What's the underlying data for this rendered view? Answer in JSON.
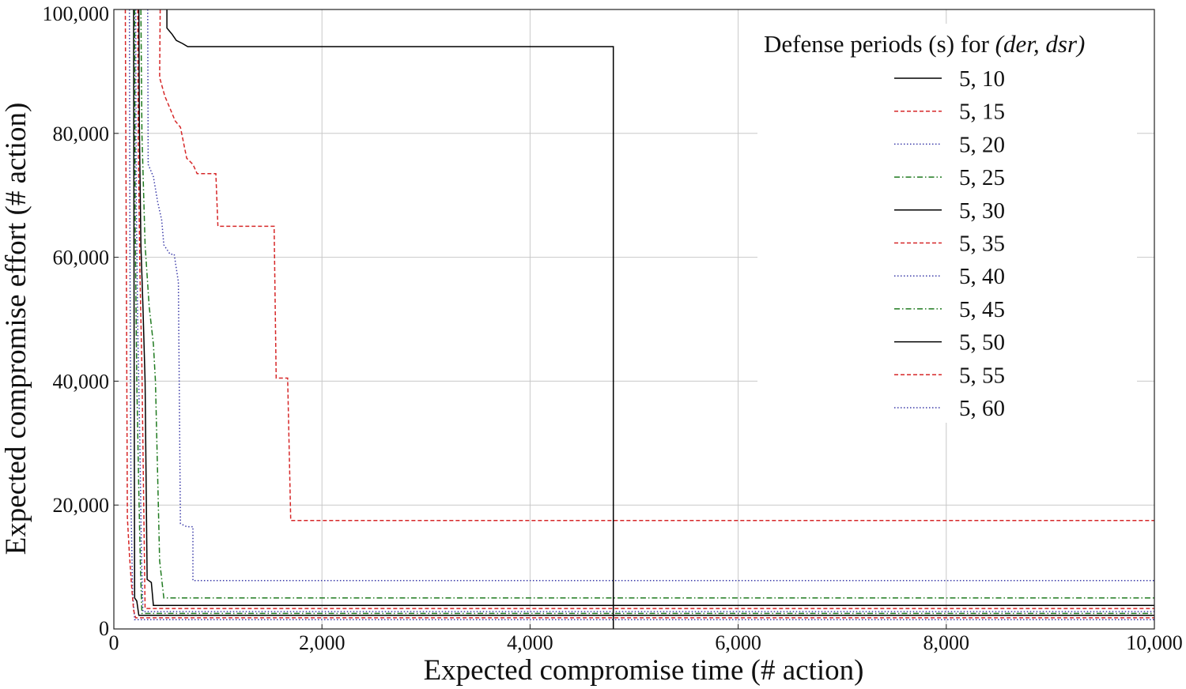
{
  "chart_data": {
    "type": "line",
    "title": "",
    "xlabel": "Expected compromise time (# action)",
    "ylabel": "Expected compromise effort (# action)",
    "xlim": [
      0,
      10000
    ],
    "ylim": [
      0,
      100000
    ],
    "xticks": [
      0,
      2000,
      4000,
      6000,
      8000,
      10000
    ],
    "xtick_labels": [
      "0",
      "2,000",
      "4,000",
      "6,000",
      "8,000",
      "10,000"
    ],
    "yticks": [
      0,
      20000,
      40000,
      60000,
      80000,
      100000
    ],
    "ytick_labels": [
      "0",
      "20,000",
      "40,000",
      "60,000",
      "80,000",
      "100,000"
    ],
    "grid": true,
    "legend": {
      "position": "top-right",
      "title": "Defense periods (s) for ",
      "title_math": "(der, dsr)"
    },
    "series": [
      {
        "name": "5, 10",
        "color": "#000000",
        "style": "solid",
        "x": [
          510,
          510,
          560,
          600,
          660,
          710,
          4800,
          4800
        ],
        "y": [
          100000,
          97000,
          96000,
          95000,
          94500,
          94000,
          94000,
          0
        ]
      },
      {
        "name": "5, 15",
        "color": "#d62728",
        "style": "dashed",
        "x": [
          445,
          440,
          490,
          540,
          590,
          640,
          700,
          760,
          800,
          980,
          1000,
          1260,
          1540,
          1560,
          1670,
          1700,
          10000
        ],
        "y": [
          100000,
          89000,
          86000,
          84000,
          82000,
          81000,
          76000,
          75000,
          73500,
          73500,
          65000,
          65000,
          65000,
          40500,
          40500,
          17500,
          17500
        ]
      },
      {
        "name": "5, 20",
        "color": "#3a3aa8",
        "style": "dotted",
        "x": [
          325,
          330,
          380,
          420,
          460,
          480,
          540,
          580,
          620,
          640,
          700,
          760,
          760,
          10000
        ],
        "y": [
          100000,
          75000,
          73000,
          69000,
          66000,
          62000,
          60500,
          60500,
          56000,
          17000,
          16500,
          16500,
          7800,
          7800
        ],
        "linked_x": [
          325,
          325
        ]
      },
      {
        "name": "5, 25",
        "color": "#1f7a1f",
        "style": "dashdot",
        "x": [
          260,
          270,
          300,
          340,
          380,
          400,
          440,
          480,
          10000
        ],
        "y": [
          100000,
          80000,
          62000,
          52000,
          46000,
          40000,
          11000,
          5000,
          5000
        ]
      },
      {
        "name": "5, 30",
        "color": "#000000",
        "style": "solid",
        "x": [
          240,
          245,
          260,
          280,
          300,
          320,
          360,
          380,
          10000
        ],
        "y": [
          100000,
          82000,
          62000,
          52000,
          40000,
          8000,
          7500,
          3800,
          3800
        ]
      },
      {
        "name": "5, 35",
        "color": "#d62728",
        "style": "dashed",
        "x": [
          230,
          235,
          250,
          270,
          290,
          300,
          10000
        ],
        "y": [
          100000,
          78000,
          58000,
          42000,
          16000,
          3300,
          3300
        ]
      },
      {
        "name": "5, 40",
        "color": "#3a3aa8",
        "style": "dotted",
        "x": [
          210,
          215,
          230,
          250,
          265,
          280,
          10000
        ],
        "y": [
          100000,
          70000,
          48000,
          30000,
          12000,
          2800,
          2800
        ]
      },
      {
        "name": "5, 45",
        "color": "#1f7a1f",
        "style": "dashdot",
        "x": [
          200,
          205,
          220,
          240,
          255,
          270,
          10000
        ],
        "y": [
          100000,
          65000,
          40000,
          22000,
          10000,
          2500,
          2500
        ]
      },
      {
        "name": "5, 50",
        "color": "#000000",
        "style": "solid",
        "x": [
          190,
          195,
          200,
          220,
          240,
          10000
        ],
        "y": [
          100000,
          40000,
          5000,
          4500,
          2200,
          2200
        ]
      },
      {
        "name": "5, 55",
        "color": "#d62728",
        "style": "dashed",
        "x": [
          110,
          130,
          150,
          170,
          190,
          210,
          10000
        ],
        "y": [
          100000,
          18000,
          12000,
          7000,
          3000,
          1800,
          1800
        ]
      },
      {
        "name": "5, 60",
        "color": "#3a3aa8",
        "style": "dotted",
        "x": [
          150,
          155,
          165,
          180,
          200,
          10000
        ],
        "y": [
          100000,
          60000,
          20000,
          6000,
          1500,
          1500
        ]
      }
    ]
  }
}
